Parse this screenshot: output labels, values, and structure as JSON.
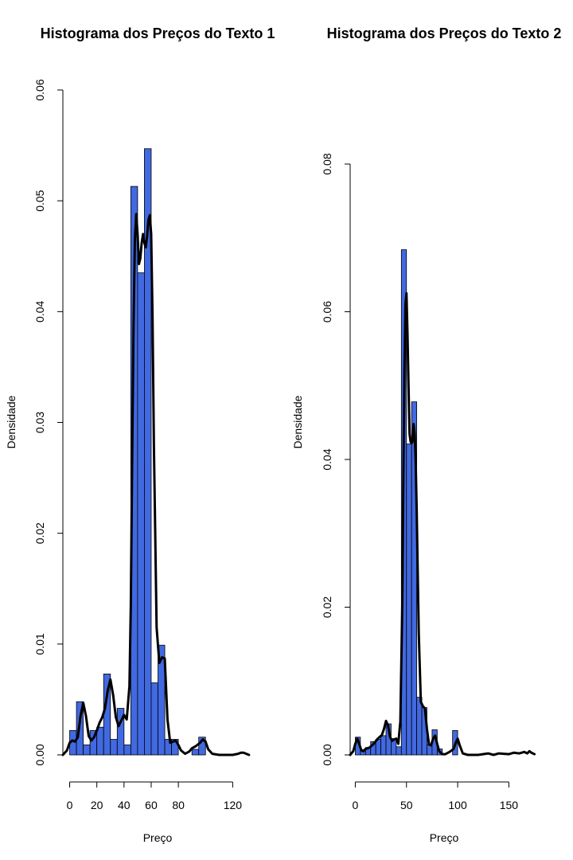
{
  "chart_data": [
    {
      "type": "bar",
      "title": "Histograma dos Preços do Texto 1",
      "xlabel": "Preço",
      "ylabel": "Densidade",
      "xlim": [
        -5,
        135
      ],
      "ylim": [
        0,
        0.06
      ],
      "xticks": [
        0,
        20,
        40,
        60,
        80,
        120
      ],
      "yticks": [
        0.0,
        0.01,
        0.02,
        0.03,
        0.04,
        0.05,
        0.06
      ],
      "ytick_labels": [
        "0.00",
        "0.01",
        "0.02",
        "0.03",
        "0.04",
        "0.05",
        "0.06"
      ],
      "bar_color": "#4169E1",
      "bin_width": 5,
      "bins": [
        {
          "x0": 0,
          "x1": 5,
          "density": 0.0022
        },
        {
          "x0": 5,
          "x1": 10,
          "density": 0.0048
        },
        {
          "x0": 10,
          "x1": 15,
          "density": 0.0009
        },
        {
          "x0": 15,
          "x1": 20,
          "density": 0.0022
        },
        {
          "x0": 20,
          "x1": 25,
          "density": 0.0025
        },
        {
          "x0": 25,
          "x1": 30,
          "density": 0.0073
        },
        {
          "x0": 30,
          "x1": 35,
          "density": 0.0014
        },
        {
          "x0": 35,
          "x1": 40,
          "density": 0.0042
        },
        {
          "x0": 40,
          "x1": 45,
          "density": 0.0009
        },
        {
          "x0": 45,
          "x1": 50,
          "density": 0.0513
        },
        {
          "x0": 50,
          "x1": 55,
          "density": 0.0435
        },
        {
          "x0": 55,
          "x1": 60,
          "density": 0.0547
        },
        {
          "x0": 60,
          "x1": 65,
          "density": 0.0065
        },
        {
          "x0": 65,
          "x1": 70,
          "density": 0.0099
        },
        {
          "x0": 70,
          "x1": 75,
          "density": 0.0014
        },
        {
          "x0": 75,
          "x1": 80,
          "density": 0.0014
        },
        {
          "x0": 80,
          "x1": 85,
          "density": 0.0
        },
        {
          "x0": 85,
          "x1": 90,
          "density": 0.0
        },
        {
          "x0": 90,
          "x1": 95,
          "density": 0.0005
        },
        {
          "x0": 95,
          "x1": 100,
          "density": 0.0016
        }
      ],
      "density_curve": {
        "x": [
          -5,
          -2,
          0,
          2,
          4,
          6,
          8,
          10,
          12,
          14,
          16,
          18,
          20,
          22,
          24,
          26,
          28,
          30,
          32,
          34,
          36,
          38,
          40,
          42,
          44,
          45,
          46,
          47,
          48,
          49,
          50,
          51,
          52,
          53,
          54,
          55,
          56,
          57,
          58,
          59,
          60,
          61,
          62,
          64,
          66,
          68,
          70,
          72,
          74,
          76,
          78,
          80,
          82,
          85,
          88,
          90,
          93,
          96,
          98,
          100,
          102,
          105,
          110,
          115,
          120,
          124,
          126,
          128,
          130,
          132
        ],
        "y": [
          0.0,
          0.0004,
          0.0011,
          0.0013,
          0.0012,
          0.0016,
          0.0035,
          0.0047,
          0.0035,
          0.0017,
          0.0013,
          0.0016,
          0.0022,
          0.0029,
          0.0034,
          0.0042,
          0.0058,
          0.0068,
          0.0054,
          0.0034,
          0.0026,
          0.0031,
          0.0036,
          0.0032,
          0.0062,
          0.0135,
          0.0265,
          0.0385,
          0.0465,
          0.0488,
          0.047,
          0.0443,
          0.0448,
          0.0462,
          0.047,
          0.0462,
          0.0458,
          0.0468,
          0.0483,
          0.0487,
          0.047,
          0.0395,
          0.028,
          0.0115,
          0.0083,
          0.0088,
          0.0087,
          0.0032,
          0.0011,
          0.0012,
          0.0013,
          0.0009,
          0.0004,
          0.0001,
          0.0003,
          0.0006,
          0.0008,
          0.0011,
          0.0014,
          0.0012,
          0.0005,
          0.0001,
          0.0,
          0.0,
          0.0,
          0.0001,
          0.0002,
          0.0002,
          0.0001,
          0.0
        ]
      }
    },
    {
      "type": "bar",
      "title": "Histograma dos Preços do Texto 2",
      "xlabel": "Preço",
      "ylabel": "Densidade",
      "xlim": [
        -5,
        180
      ],
      "ylim": [
        0,
        0.08
      ],
      "xticks": [
        0,
        50,
        100,
        150
      ],
      "yticks": [
        0.0,
        0.02,
        0.04,
        0.06,
        0.08
      ],
      "ytick_labels": [
        "0.00",
        "0.02",
        "0.04",
        "0.06",
        "0.08"
      ],
      "bar_color": "#4169E1",
      "bin_width": 5,
      "bins": [
        {
          "x0": 0,
          "x1": 5,
          "density": 0.0024
        },
        {
          "x0": 5,
          "x1": 10,
          "density": 0.0007
        },
        {
          "x0": 10,
          "x1": 15,
          "density": 0.001
        },
        {
          "x0": 15,
          "x1": 20,
          "density": 0.0018
        },
        {
          "x0": 20,
          "x1": 25,
          "density": 0.0021
        },
        {
          "x0": 25,
          "x1": 30,
          "density": 0.0026
        },
        {
          "x0": 30,
          "x1": 35,
          "density": 0.0042
        },
        {
          "x0": 35,
          "x1": 40,
          "density": 0.0022
        },
        {
          "x0": 40,
          "x1": 45,
          "density": 0.0011
        },
        {
          "x0": 45,
          "x1": 50,
          "density": 0.0684
        },
        {
          "x0": 50,
          "x1": 55,
          "density": 0.0421
        },
        {
          "x0": 55,
          "x1": 60,
          "density": 0.0478
        },
        {
          "x0": 60,
          "x1": 65,
          "density": 0.0078
        },
        {
          "x0": 65,
          "x1": 70,
          "density": 0.0064
        },
        {
          "x0": 70,
          "x1": 75,
          "density": 0.0014
        },
        {
          "x0": 75,
          "x1": 80,
          "density": 0.0034
        },
        {
          "x0": 80,
          "x1": 85,
          "density": 0.0008
        },
        {
          "x0": 85,
          "x1": 90,
          "density": 0.0
        },
        {
          "x0": 90,
          "x1": 95,
          "density": 0.0
        },
        {
          "x0": 95,
          "x1": 100,
          "density": 0.0033
        }
      ],
      "density_curve": {
        "x": [
          -5,
          -2,
          0,
          2,
          4,
          6,
          8,
          10,
          14,
          18,
          22,
          26,
          28,
          30,
          32,
          34,
          36,
          38,
          40,
          42,
          44,
          46,
          47,
          48,
          49,
          50,
          51,
          52,
          53,
          54,
          55,
          56,
          57,
          58,
          59,
          60,
          62,
          64,
          66,
          68,
          70,
          72,
          74,
          76,
          78,
          80,
          82,
          85,
          88,
          92,
          96,
          98,
          100,
          102,
          105,
          110,
          120,
          130,
          135,
          140,
          150,
          155,
          160,
          165,
          168,
          170,
          172,
          175
        ],
        "y": [
          0.0,
          0.0005,
          0.0015,
          0.0022,
          0.0014,
          0.0006,
          0.0005,
          0.0008,
          0.001,
          0.0015,
          0.0022,
          0.0027,
          0.0035,
          0.0046,
          0.004,
          0.0024,
          0.0019,
          0.0021,
          0.0022,
          0.0015,
          0.0045,
          0.021,
          0.038,
          0.052,
          0.061,
          0.0625,
          0.057,
          0.05,
          0.0435,
          0.0424,
          0.0422,
          0.0425,
          0.0448,
          0.0435,
          0.0395,
          0.033,
          0.0165,
          0.0072,
          0.0066,
          0.0063,
          0.0035,
          0.0014,
          0.0013,
          0.0022,
          0.0026,
          0.0015,
          0.0005,
          0.0001,
          0.0001,
          0.0004,
          0.0008,
          0.0016,
          0.0022,
          0.0013,
          0.0002,
          0.0,
          0.0,
          0.0002,
          0.0,
          0.0002,
          0.0001,
          0.0003,
          0.0002,
          0.0004,
          0.0002,
          0.0005,
          0.0003,
          0.0001
        ]
      }
    }
  ]
}
